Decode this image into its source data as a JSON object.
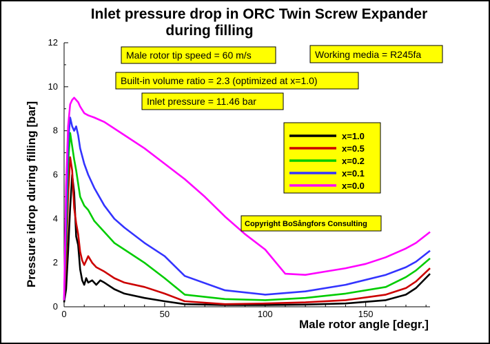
{
  "chart_data": {
    "type": "line",
    "title_line1": "Inlet pressure drop in ORC Twin Screw Expander",
    "title_line2": "during filling",
    "xlabel": "Male rotor angle [degr.]",
    "ylabel": "Pressure idrop during filling [bar]",
    "xlim": [
      0,
      182
    ],
    "ylim": [
      0,
      12
    ],
    "xticks": [
      0,
      50,
      100,
      150
    ],
    "yticks": [
      0,
      2,
      4,
      6,
      8,
      10,
      12
    ],
    "grid": false,
    "legend_position": "center-right",
    "annotations": {
      "tip_speed": "Male rotor tip speed = 60 m/s",
      "media": "Working media = R245fa",
      "volume_ratio": "Built-in volume ratio = 2.3 (optimized at x=1.0)",
      "inlet_pressure": "Inlet pressure = 11.46 bar",
      "copyright": "Copyright BoSångfors Consulting"
    },
    "annotation_box_color": "#ffff00",
    "series": [
      {
        "name": "x=1.0",
        "color": "#000000",
        "x": [
          0,
          1,
          2,
          3,
          4,
          5,
          6,
          7,
          8,
          9,
          10,
          11,
          12,
          14,
          16,
          18,
          20,
          25,
          30,
          40,
          50,
          60,
          80,
          100,
          120,
          140,
          160,
          170,
          175,
          182
        ],
        "y": [
          0.2,
          0.8,
          2.5,
          4.5,
          6.0,
          5.2,
          3.2,
          2.8,
          1.7,
          1.2,
          1.0,
          1.3,
          1.1,
          1.2,
          1.0,
          1.2,
          1.1,
          0.8,
          0.6,
          0.4,
          0.25,
          0.12,
          0.08,
          0.08,
          0.1,
          0.15,
          0.3,
          0.55,
          0.85,
          1.5
        ]
      },
      {
        "name": "x=0.5",
        "color": "#cc0000",
        "x": [
          0,
          1,
          2,
          3,
          4,
          5,
          6,
          7,
          8,
          9,
          10,
          12,
          14,
          16,
          20,
          25,
          30,
          40,
          50,
          60,
          80,
          100,
          120,
          140,
          160,
          170,
          175,
          182
        ],
        "y": [
          0.3,
          2.0,
          5.0,
          6.8,
          6.2,
          4.5,
          3.8,
          3.3,
          2.5,
          2.1,
          1.9,
          2.3,
          2.0,
          1.8,
          1.6,
          1.3,
          1.1,
          0.9,
          0.6,
          0.25,
          0.12,
          0.15,
          0.2,
          0.3,
          0.55,
          0.85,
          1.15,
          1.75
        ]
      },
      {
        "name": "x=0.2",
        "color": "#00cc00",
        "x": [
          0,
          1,
          2,
          3,
          4,
          5,
          6,
          7,
          8,
          10,
          12,
          15,
          20,
          25,
          30,
          40,
          50,
          60,
          80,
          100,
          120,
          140,
          160,
          170,
          175,
          182
        ],
        "y": [
          0.3,
          3.0,
          6.5,
          7.9,
          7.3,
          6.7,
          6.2,
          5.6,
          5.0,
          4.6,
          4.4,
          3.9,
          3.4,
          2.9,
          2.6,
          2.0,
          1.3,
          0.55,
          0.35,
          0.3,
          0.4,
          0.6,
          0.9,
          1.35,
          1.65,
          2.2
        ]
      },
      {
        "name": "x=0.1",
        "color": "#3333ff",
        "x": [
          0,
          1,
          2,
          3,
          4,
          5,
          6,
          7,
          8,
          10,
          12,
          15,
          20,
          25,
          30,
          40,
          50,
          60,
          80,
          100,
          120,
          140,
          160,
          170,
          175,
          182
        ],
        "y": [
          0.3,
          4.0,
          7.5,
          8.6,
          8.2,
          8.0,
          8.2,
          7.8,
          7.2,
          6.5,
          6.0,
          5.4,
          4.6,
          4.0,
          3.6,
          2.9,
          2.3,
          1.4,
          0.75,
          0.55,
          0.7,
          1.0,
          1.45,
          1.8,
          2.05,
          2.55
        ]
      },
      {
        "name": "x=0.0",
        "color": "#ff00ff",
        "x": [
          0,
          1,
          2,
          3,
          4,
          5,
          6,
          7,
          8,
          10,
          12,
          15,
          20,
          30,
          40,
          50,
          60,
          70,
          80,
          90,
          100,
          110,
          120,
          130,
          140,
          150,
          160,
          170,
          175,
          182
        ],
        "y": [
          0.3,
          5.5,
          8.2,
          9.2,
          9.4,
          9.5,
          9.4,
          9.3,
          9.1,
          8.8,
          8.7,
          8.6,
          8.4,
          7.8,
          7.2,
          6.5,
          5.8,
          5.0,
          4.1,
          3.3,
          2.6,
          1.5,
          1.45,
          1.6,
          1.75,
          1.95,
          2.25,
          2.65,
          2.9,
          3.4
        ]
      }
    ]
  }
}
